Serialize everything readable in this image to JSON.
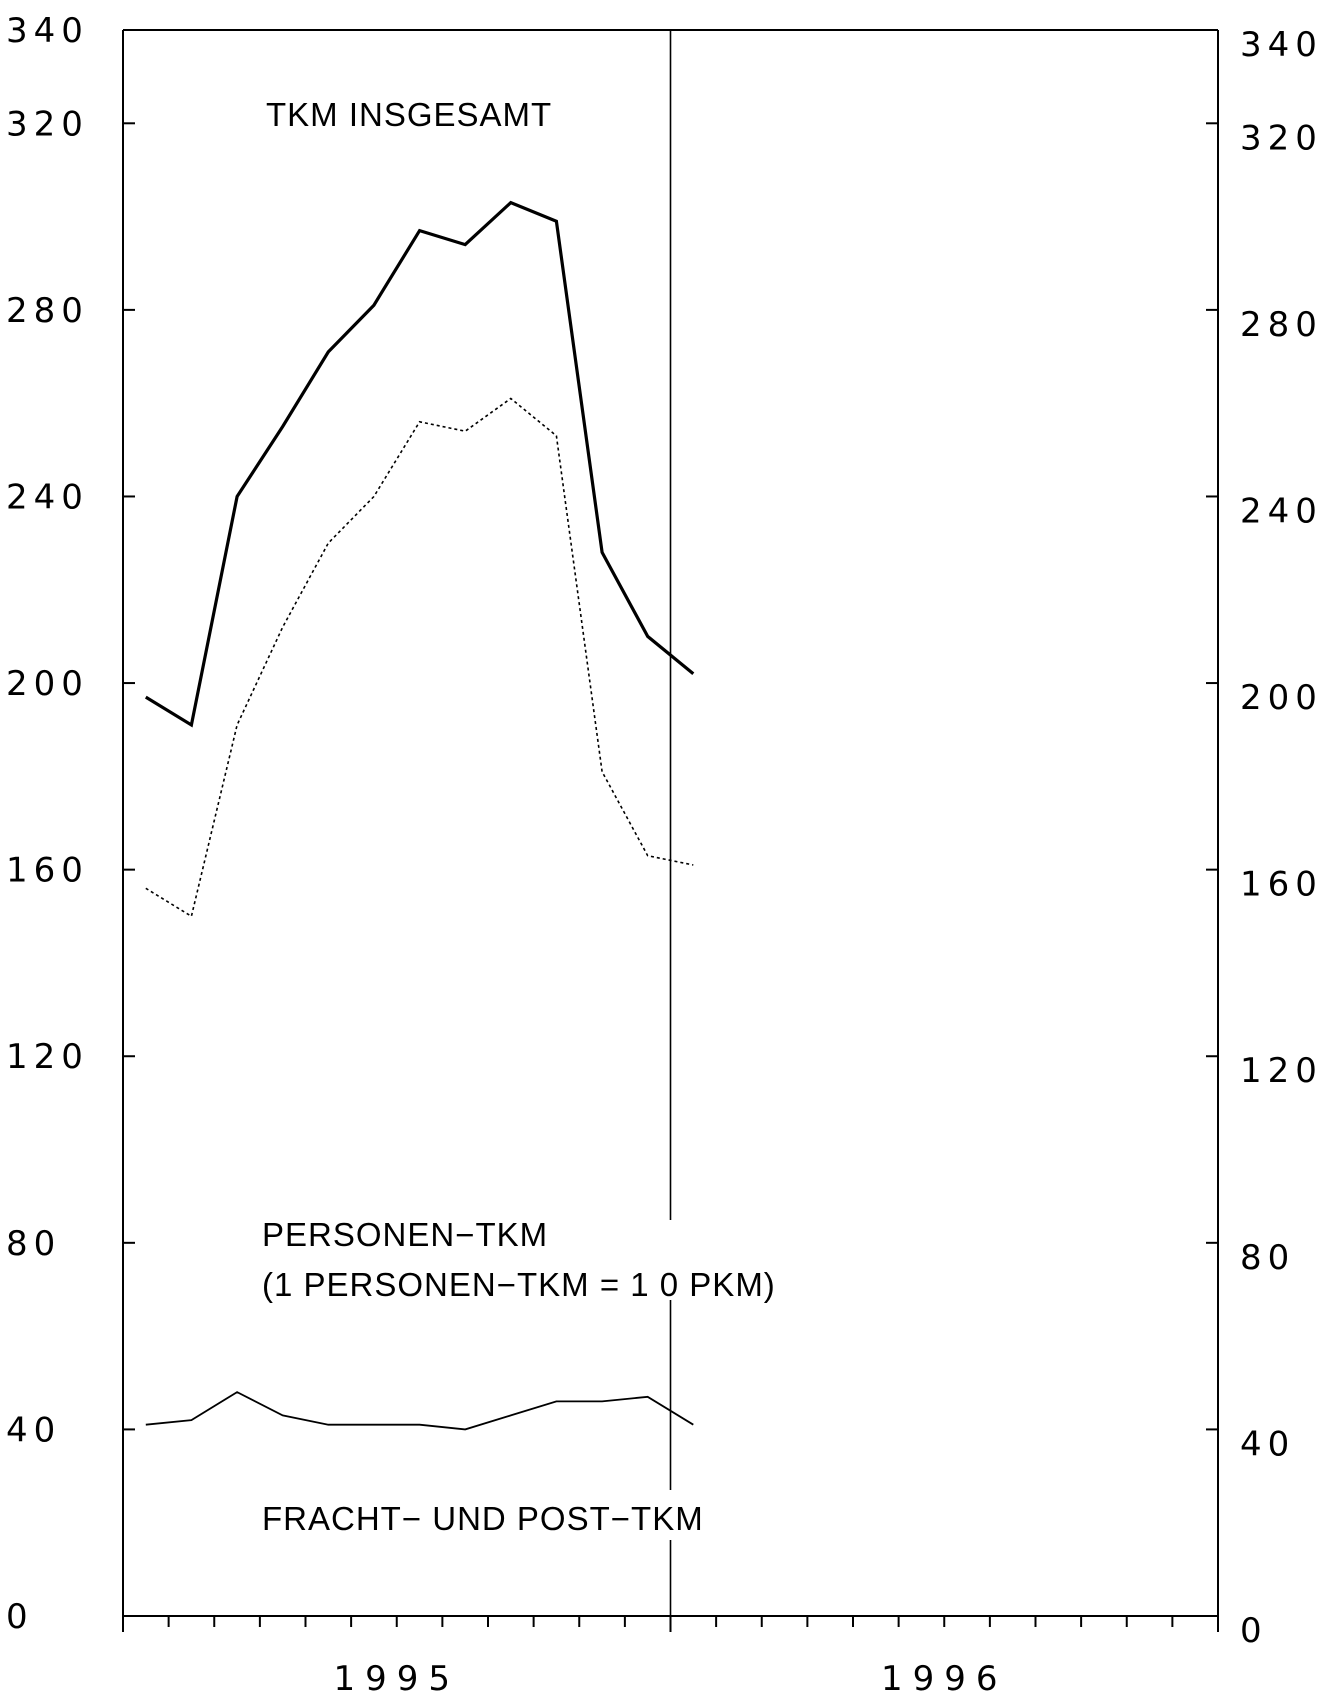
{
  "chart_data": {
    "type": "line",
    "title": "",
    "xlabel": "",
    "ylabel": "",
    "ylim": [
      0,
      340
    ],
    "y_ticks": [
      0,
      40,
      80,
      120,
      160,
      200,
      240,
      280,
      320,
      340
    ],
    "y_tick_labels_left": [
      "0",
      "40",
      "80",
      "120",
      "160",
      "200",
      "240",
      "280",
      "320",
      "340"
    ],
    "y_tick_labels_right": [
      "0",
      "40",
      "80",
      "120",
      "160",
      "200",
      "240",
      "280",
      "320",
      "340"
    ],
    "x_period": "monthly, Jan 1995 – Dec 1996",
    "x_months": [
      "1995-01",
      "1995-02",
      "1995-03",
      "1995-04",
      "1995-05",
      "1995-06",
      "1995-07",
      "1995-08",
      "1995-09",
      "1995-10",
      "1995-11",
      "1995-12",
      "1996-01",
      "1996-02",
      "1996-03",
      "1996-04",
      "1996-05",
      "1996-06",
      "1996-07",
      "1996-08",
      "1996-09",
      "1996-10",
      "1996-11",
      "1996-12"
    ],
    "year_labels": [
      "1995",
      "1996"
    ],
    "year_separator": "1996-01",
    "grid": false,
    "series": [
      {
        "key": "insgesamt",
        "style": "solid-thick",
        "color": "#000000",
        "values": [
          197,
          191,
          240,
          255,
          271,
          281,
          297,
          294,
          303,
          299,
          228,
          210,
          202
        ]
      },
      {
        "key": "personen",
        "style": "dotted",
        "color": "#000000",
        "values": [
          156,
          150,
          191,
          212,
          230,
          240,
          256,
          254,
          261,
          253,
          181,
          163,
          161
        ]
      },
      {
        "key": "fracht",
        "style": "solid-thin",
        "color": "#000000",
        "values": [
          41,
          42,
          48,
          43,
          41,
          41,
          41,
          40,
          43,
          46,
          46,
          47,
          41
        ]
      }
    ],
    "annotations": {
      "insgesamt": "TKM INSGESAMT",
      "personen_line1": "PERSONEN−TKM",
      "personen_line2": "(1 PERSONEN−TKM = 1 0  PKM)",
      "fracht": "FRACHT−  UND  POST−TKM"
    }
  }
}
